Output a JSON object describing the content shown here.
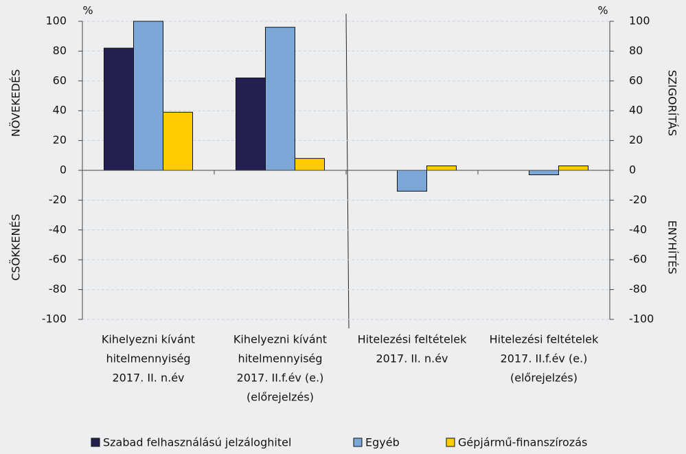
{
  "chart_data": {
    "type": "bar",
    "categories": [
      [
        "Kihelyezni kívánt",
        "hitelmennyiség",
        "2017. II. n.év"
      ],
      [
        "Kihelyezni kívánt",
        "hitelmennyiség",
        "2017. II.f.év (e.)",
        "(előrejelzés)"
      ],
      [
        "Hitelezési feltételek",
        "2017. II. n.év"
      ],
      [
        "Hitelezési feltételek",
        "2017. II.f.év (e.)",
        "(előrejelzés)"
      ]
    ],
    "series": [
      {
        "name": "Szabad felhasználású jelzáloghitel",
        "color": "#222151",
        "values": [
          82,
          62,
          0,
          0
        ]
      },
      {
        "name": "Egyéb",
        "color": "#7ba7d7",
        "values": [
          100,
          96,
          -14,
          -3
        ]
      },
      {
        "name": "Gépjármű-finanszírozás",
        "color": "#ffcc00",
        "values": [
          39,
          8,
          3,
          3
        ]
      }
    ],
    "ylim": [
      -100,
      100
    ],
    "yticks": [
      -100,
      -80,
      -60,
      -40,
      -20,
      0,
      20,
      40,
      60,
      80,
      100
    ],
    "y2lim": [
      -100,
      100
    ],
    "y2ticks": [
      -100,
      -80,
      -60,
      -40,
      -20,
      0,
      20,
      40,
      60,
      80,
      100
    ],
    "grid": true,
    "y_unit": "%",
    "y2_unit": "%",
    "y_label_top": "NÖVEKEDÉS",
    "y_label_bottom": "CSÖKKENÉS",
    "y2_label_top": "SZIGORÍTÁS",
    "y2_label_bottom": "ENYHÍTÉS",
    "legend": "bottom"
  }
}
